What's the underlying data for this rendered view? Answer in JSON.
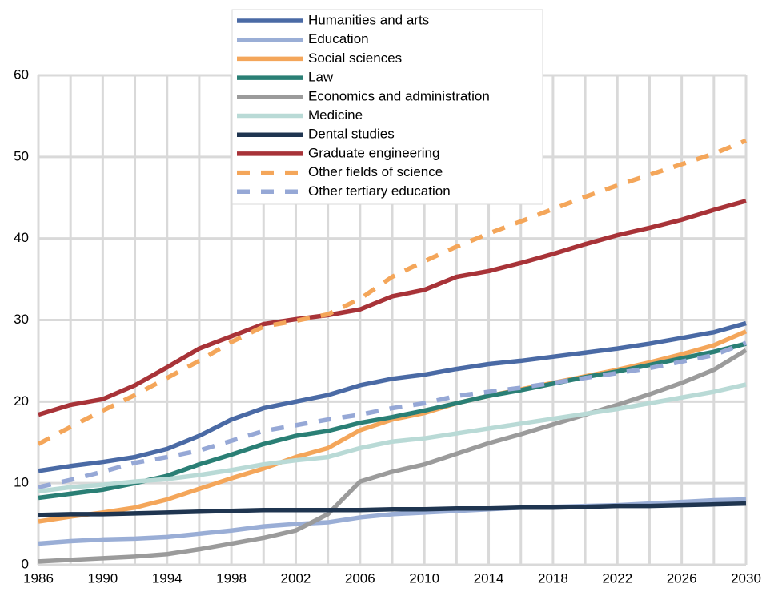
{
  "chart_data": {
    "type": "line",
    "x": [
      1986,
      1988,
      1990,
      1992,
      1994,
      1996,
      1998,
      2000,
      2002,
      2004,
      2006,
      2008,
      2010,
      2012,
      2014,
      2016,
      2018,
      2020,
      2022,
      2024,
      2026,
      2028,
      2030
    ],
    "xlim": [
      1986,
      2030
    ],
    "xticks": [
      1986,
      1990,
      1994,
      1998,
      2002,
      2006,
      2010,
      2014,
      2018,
      2022,
      2026,
      2030
    ],
    "ylim": [
      0,
      60
    ],
    "yticks": [
      0,
      10,
      20,
      30,
      40,
      50,
      60
    ],
    "grid": true,
    "legend": "top",
    "series": [
      {
        "name": "Humanities and arts",
        "color": "#4a6aa5",
        "values": [
          11.5,
          12.1,
          12.6,
          13.2,
          14.2,
          15.8,
          17.8,
          19.2,
          20.0,
          20.8,
          22.0,
          22.8,
          23.3,
          24.0,
          24.6,
          25.0,
          25.5,
          26.0,
          26.5,
          27.1,
          27.8,
          28.5,
          29.6
        ]
      },
      {
        "name": "Education",
        "color": "#9aaed6",
        "values": [
          2.6,
          2.9,
          3.1,
          3.2,
          3.4,
          3.8,
          4.2,
          4.7,
          5.0,
          5.2,
          5.8,
          6.2,
          6.4,
          6.6,
          6.8,
          7.0,
          7.1,
          7.2,
          7.3,
          7.5,
          7.7,
          7.9,
          8.0
        ]
      },
      {
        "name": "Social sciences",
        "color": "#f4a65a",
        "values": [
          5.3,
          5.9,
          6.4,
          7.0,
          8.0,
          9.3,
          10.6,
          11.8,
          13.2,
          14.3,
          16.5,
          17.8,
          18.6,
          19.8,
          20.7,
          21.5,
          22.3,
          23.1,
          23.9,
          24.8,
          25.8,
          26.9,
          28.6
        ]
      },
      {
        "name": "Law",
        "color": "#2a7f75",
        "values": [
          8.2,
          8.7,
          9.2,
          10.0,
          10.9,
          12.3,
          13.5,
          14.8,
          15.8,
          16.4,
          17.4,
          18.1,
          18.9,
          19.8,
          20.7,
          21.4,
          22.2,
          23.0,
          23.7,
          24.5,
          25.3,
          26.1,
          27.1
        ]
      },
      {
        "name": "Economics and administration",
        "color": "#9b9b9b",
        "values": [
          0.4,
          0.6,
          0.8,
          1.0,
          1.3,
          1.9,
          2.6,
          3.3,
          4.2,
          6.2,
          10.2,
          11.4,
          12.3,
          13.6,
          14.9,
          16.0,
          17.2,
          18.4,
          19.6,
          20.9,
          22.3,
          23.9,
          26.3
        ]
      },
      {
        "name": "Medicine",
        "color": "#b9dad6",
        "values": [
          9.0,
          9.5,
          9.8,
          10.2,
          10.5,
          11.0,
          11.6,
          12.3,
          12.8,
          13.2,
          14.3,
          15.1,
          15.5,
          16.1,
          16.7,
          17.3,
          17.9,
          18.5,
          19.1,
          19.8,
          20.5,
          21.2,
          22.1
        ]
      },
      {
        "name": "Dental studies",
        "color": "#1f3550",
        "values": [
          6.1,
          6.2,
          6.2,
          6.3,
          6.4,
          6.5,
          6.6,
          6.7,
          6.7,
          6.7,
          6.7,
          6.8,
          6.8,
          6.9,
          6.9,
          7.0,
          7.0,
          7.1,
          7.2,
          7.2,
          7.3,
          7.4,
          7.5
        ]
      },
      {
        "name": "Graduate engineering",
        "color": "#a83338",
        "values": [
          18.4,
          19.6,
          20.3,
          22.0,
          24.2,
          26.5,
          28.0,
          29.5,
          30.1,
          30.6,
          31.3,
          32.9,
          33.7,
          35.3,
          36.0,
          37.0,
          38.1,
          39.3,
          40.4,
          41.3,
          42.3,
          43.5,
          44.6
        ]
      },
      {
        "name": "Other fields of science",
        "color": "#f4a65a",
        "dashed": true,
        "values": [
          14.8,
          16.9,
          18.9,
          20.8,
          22.9,
          25.0,
          27.3,
          29.2,
          29.9,
          30.7,
          32.6,
          35.3,
          37.2,
          39.0,
          40.6,
          42.1,
          43.6,
          45.1,
          46.5,
          47.8,
          49.1,
          50.4,
          52.0
        ]
      },
      {
        "name": "Other tertiary education",
        "color": "#96a8d6",
        "dashed": true,
        "values": [
          9.5,
          10.4,
          11.4,
          12.5,
          13.2,
          14.0,
          15.2,
          16.4,
          17.1,
          17.8,
          18.4,
          19.2,
          19.8,
          20.7,
          21.2,
          21.7,
          22.3,
          22.9,
          23.5,
          24.1,
          24.9,
          25.7,
          27.2
        ]
      }
    ]
  }
}
